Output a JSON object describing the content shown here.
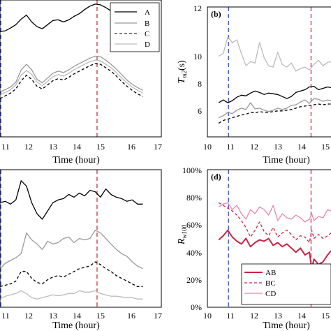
{
  "chart_data": [
    {
      "panel": "a",
      "type": "line",
      "xlabel": "Time (hour)",
      "xticks": [
        "11",
        "12",
        "13",
        "14",
        "15",
        "16",
        "17"
      ],
      "xlim": [
        10.9,
        17
      ],
      "ylim": [
        0,
        10
      ],
      "vlines": [
        {
          "x": 10.93,
          "color": "#3344cc"
        },
        {
          "x": 14.57,
          "color": "#cc3344"
        }
      ],
      "legend": {
        "placement": "top-right"
      },
      "series": [
        {
          "name": "A",
          "color": "#000000",
          "dash": "solid",
          "x": [
            10.9,
            11.1,
            11.3,
            11.5,
            11.7,
            11.9,
            12.1,
            12.3,
            12.5,
            12.7,
            12.9,
            13.1,
            13.3,
            13.5,
            13.7,
            13.9,
            14.1,
            14.3,
            14.5,
            14.7,
            14.9,
            15.1,
            15.3,
            15.5,
            15.7,
            15.9,
            16.1,
            16.3
          ],
          "y": [
            7.7,
            7.75,
            7.95,
            8.2,
            8.6,
            8.9,
            8.4,
            8.05,
            7.9,
            8.2,
            8.5,
            8.55,
            8.4,
            8.55,
            8.8,
            9.0,
            9.3,
            9.55,
            9.7,
            9.65,
            9.45,
            9.2,
            8.85,
            8.5,
            8.2,
            7.95,
            7.8,
            7.7
          ]
        },
        {
          "name": "B",
          "color": "#999999",
          "dash": "solid",
          "x": [
            10.9,
            11.1,
            11.3,
            11.5,
            11.7,
            11.9,
            12.1,
            12.3,
            12.5,
            12.7,
            12.9,
            13.1,
            13.3,
            13.5,
            13.7,
            13.9,
            14.1,
            14.3,
            14.5,
            14.7,
            14.9,
            15.1,
            15.3,
            15.5,
            15.7,
            15.9,
            16.1,
            16.3
          ],
          "y": [
            3.3,
            3.45,
            3.65,
            4.0,
            4.9,
            5.3,
            4.9,
            4.2,
            3.95,
            4.3,
            4.65,
            4.8,
            4.7,
            4.9,
            5.15,
            5.35,
            5.55,
            5.75,
            5.9,
            5.85,
            5.6,
            5.3,
            4.95,
            4.55,
            4.15,
            3.85,
            3.6,
            3.4
          ]
        },
        {
          "name": "C",
          "color": "#000000",
          "dash": "dashed",
          "x": [
            10.9,
            11.1,
            11.3,
            11.5,
            11.7,
            11.9,
            12.1,
            12.3,
            12.5,
            12.7,
            12.9,
            13.1,
            13.3,
            13.5,
            13.7,
            13.9,
            14.1,
            14.3,
            14.5,
            14.7,
            14.9,
            15.1,
            15.3,
            15.5,
            15.7,
            15.9,
            16.1,
            16.3
          ],
          "y": [
            2.8,
            3.0,
            3.2,
            3.5,
            4.1,
            4.5,
            4.2,
            3.7,
            3.5,
            3.8,
            4.1,
            4.25,
            4.15,
            4.35,
            4.6,
            4.8,
            5.0,
            5.2,
            5.35,
            5.3,
            5.05,
            4.8,
            4.45,
            4.05,
            3.7,
            3.4,
            3.15,
            2.95
          ]
        },
        {
          "name": "D",
          "color": "#bbbbbb",
          "dash": "solid",
          "x": [
            10.9,
            11.1,
            11.3,
            11.5,
            11.7,
            11.9,
            12.1,
            12.3,
            12.5,
            12.7,
            12.9,
            13.1,
            13.3,
            13.5,
            13.7,
            13.9,
            14.1,
            14.3,
            14.5,
            14.7,
            14.9,
            15.1,
            15.3,
            15.5,
            15.7,
            15.9,
            16.1,
            16.3
          ],
          "y": [
            3.1,
            3.25,
            3.45,
            3.8,
            4.5,
            4.85,
            4.55,
            4.0,
            3.75,
            4.05,
            4.4,
            4.55,
            4.45,
            4.65,
            4.9,
            5.1,
            5.3,
            5.5,
            5.6,
            5.55,
            5.3,
            5.05,
            4.7,
            4.3,
            3.95,
            3.65,
            3.4,
            3.2
          ]
        }
      ]
    },
    {
      "panel": "b",
      "type": "line",
      "tag": "(b)",
      "xlabel": "Time (hour)",
      "xticks": [
        "10",
        "11",
        "12",
        "13",
        "14",
        "15"
      ],
      "xlim": [
        10,
        15.45
      ],
      "yticks": [
        "6",
        "8",
        "10",
        "12"
      ],
      "ylim": [
        2.5,
        12
      ],
      "vlines": [
        {
          "x": 10.93,
          "color": "#3344cc"
        },
        {
          "x": 14.57,
          "color": "#cc3344"
        }
      ],
      "series": [
        {
          "color": "#000000",
          "x": [
            10.5,
            10.7,
            10.9,
            11.1,
            11.3,
            11.5,
            11.7,
            11.9,
            12.1,
            12.3,
            12.5,
            12.7,
            12.9,
            13.1,
            13.3,
            13.5,
            13.7,
            13.9,
            14.1,
            14.3,
            14.5,
            14.7,
            14.9,
            15.1,
            15.3,
            15.45
          ],
          "y": [
            5.0,
            5.2,
            5.0,
            5.15,
            5.4,
            5.55,
            5.5,
            5.7,
            5.85,
            5.75,
            5.6,
            5.7,
            5.65,
            5.6,
            5.45,
            5.3,
            5.45,
            5.75,
            5.85,
            5.95,
            6.15,
            6.2,
            5.95,
            6.05,
            6.15,
            6.1
          ]
        },
        {
          "color": "#999999",
          "x": [
            10.5,
            10.7,
            10.9,
            11.1,
            11.3,
            11.5,
            11.7,
            11.9,
            12.1,
            12.3,
            12.5,
            12.7,
            12.9,
            13.1,
            13.3,
            13.5,
            13.7,
            13.9,
            14.1,
            14.3,
            14.5,
            14.7,
            14.9,
            15.1,
            15.3,
            15.45
          ],
          "y": [
            3.9,
            4.05,
            4.3,
            4.2,
            4.45,
            4.6,
            4.5,
            5.0,
            4.55,
            4.6,
            4.45,
            4.35,
            4.45,
            4.6,
            4.5,
            4.6,
            4.8,
            4.85,
            5.05,
            5.2,
            4.95,
            5.3,
            5.25,
            5.1,
            5.2,
            5.15
          ]
        },
        {
          "color": "#000000",
          "dash": "dashed",
          "x": [
            10.5,
            10.7,
            10.9,
            11.1,
            11.3,
            11.5,
            11.7,
            11.9,
            12.1,
            12.3,
            12.5,
            12.7,
            12.9,
            13.1,
            13.3,
            13.5,
            13.7,
            13.9,
            14.1,
            14.3,
            14.5,
            14.7,
            14.9,
            15.1,
            15.3,
            15.45
          ],
          "y": [
            3.5,
            3.7,
            3.8,
            3.9,
            4.0,
            4.1,
            4.15,
            4.3,
            4.25,
            4.35,
            4.3,
            4.3,
            4.35,
            4.4,
            4.4,
            4.45,
            4.5,
            4.6,
            4.7,
            4.75,
            4.8,
            4.85,
            4.9,
            4.85,
            4.9,
            4.9
          ]
        },
        {
          "color": "#bbbbbb",
          "x": [
            10.5,
            10.7,
            10.9,
            11.1,
            11.3,
            11.5,
            11.7,
            11.9,
            12.1,
            12.3,
            12.5,
            12.7,
            12.9,
            13.1,
            13.3,
            13.5,
            13.7,
            13.9,
            14.1,
            14.3,
            14.5,
            14.7,
            14.9,
            15.1,
            15.3,
            15.45
          ],
          "y": [
            8.4,
            8.6,
            9.8,
            9.4,
            9.6,
            8.6,
            7.7,
            8.0,
            7.9,
            9.4,
            8.3,
            7.7,
            7.6,
            8.7,
            7.8,
            7.6,
            7.9,
            7.3,
            7.5,
            7.6,
            7.4,
            7.8,
            8.1,
            7.7,
            7.95,
            8.0
          ]
        }
      ]
    },
    {
      "panel": "c",
      "type": "line",
      "xlabel": "Time (hour)",
      "xticks": [
        "11",
        "12",
        "13",
        "14",
        "15",
        "16",
        "17"
      ],
      "xlim": [
        10.9,
        17
      ],
      "ylim": [
        0,
        10
      ],
      "vlines": [
        {
          "x": 10.93,
          "color": "#3344cc"
        },
        {
          "x": 14.57,
          "color": "#cc3344"
        }
      ],
      "series": [
        {
          "color": "#000000",
          "x": [
            10.9,
            11.1,
            11.3,
            11.5,
            11.7,
            11.9,
            12.1,
            12.3,
            12.5,
            12.7,
            12.9,
            13.1,
            13.3,
            13.5,
            13.7,
            13.9,
            14.1,
            14.3,
            14.5,
            14.7,
            14.9,
            15.1,
            15.3,
            15.5,
            15.7,
            15.9,
            16.1,
            16.3
          ],
          "y": [
            7.6,
            7.7,
            7.5,
            7.8,
            9.2,
            8.8,
            7.6,
            6.8,
            6.4,
            7.0,
            7.6,
            7.8,
            7.9,
            8.2,
            8.0,
            8.3,
            8.1,
            8.5,
            8.4,
            8.0,
            8.6,
            8.2,
            8.0,
            7.9,
            7.7,
            7.8,
            7.5,
            7.5
          ]
        },
        {
          "color": "#999999",
          "x": [
            10.9,
            11.1,
            11.3,
            11.5,
            11.7,
            11.9,
            12.1,
            12.3,
            12.5,
            12.7,
            12.9,
            13.1,
            13.3,
            13.5,
            13.7,
            13.9,
            14.1,
            14.3,
            14.5,
            14.7,
            14.9,
            15.1,
            15.3,
            15.5,
            15.7,
            15.9,
            16.1,
            16.3
          ],
          "y": [
            2.8,
            3.2,
            3.4,
            3.6,
            3.9,
            5.4,
            4.9,
            4.6,
            4.2,
            4.8,
            4.6,
            4.7,
            5.0,
            5.1,
            4.7,
            5.0,
            4.9,
            5.0,
            5.6,
            5.4,
            5.0,
            4.6,
            4.2,
            3.9,
            3.7,
            3.3,
            3.0,
            2.8
          ]
        },
        {
          "color": "#000000",
          "dash": "dashed",
          "x": [
            10.9,
            11.1,
            11.3,
            11.5,
            11.7,
            11.9,
            12.1,
            12.3,
            12.5,
            12.7,
            12.9,
            13.1,
            13.3,
            13.5,
            13.7,
            13.9,
            14.1,
            14.3,
            14.5,
            14.7,
            14.9,
            15.1,
            15.3,
            15.5,
            15.7,
            15.9,
            16.1,
            16.3
          ],
          "y": [
            1.5,
            1.6,
            1.7,
            1.9,
            2.6,
            2.6,
            2.1,
            1.8,
            1.7,
            2.0,
            2.2,
            2.3,
            2.2,
            2.4,
            2.6,
            2.8,
            2.9,
            3.0,
            3.3,
            3.1,
            2.8,
            2.6,
            2.3,
            2.1,
            1.9,
            1.7,
            1.5,
            1.5
          ]
        },
        {
          "color": "#bbbbbb",
          "x": [
            10.9,
            11.1,
            11.3,
            11.5,
            11.7,
            11.9,
            12.1,
            12.3,
            12.5,
            12.7,
            12.9,
            13.1,
            13.3,
            13.5,
            13.7,
            13.9,
            14.1,
            14.3,
            14.5,
            14.7,
            14.9,
            15.1,
            15.3,
            15.5,
            15.7,
            15.9,
            16.1,
            16.3
          ],
          "y": [
            0.6,
            0.8,
            0.9,
            1.0,
            1.2,
            1.0,
            0.7,
            0.6,
            0.7,
            0.8,
            0.9,
            0.85,
            0.9,
            1.0,
            1.0,
            1.2,
            1.1,
            1.1,
            1.2,
            1.0,
            0.9,
            0.8,
            0.8,
            0.75,
            0.7,
            0.7,
            0.6,
            0.6
          ]
        }
      ]
    },
    {
      "panel": "d",
      "type": "line",
      "tag": "(d)",
      "xlabel": "Time (hour)",
      "xticks": [
        "10",
        "11",
        "12",
        "13",
        "14",
        "15"
      ],
      "xlim": [
        10,
        15.45
      ],
      "yticks": [
        "0%",
        "20%",
        "40%",
        "60%",
        "80%",
        "100%"
      ],
      "ylim": [
        0,
        100
      ],
      "vlines": [
        {
          "x": 10.93,
          "color": "#3344cc"
        },
        {
          "x": 14.57,
          "color": "#cc3344"
        }
      ],
      "legend": {
        "placement": "bottom-right"
      },
      "series": [
        {
          "name": "AB",
          "color": "#cc2244",
          "dash": "solid",
          "x": [
            10.5,
            10.7,
            10.9,
            11.1,
            11.3,
            11.5,
            11.7,
            11.9,
            12.1,
            12.3,
            12.5,
            12.7,
            12.9,
            13.1,
            13.3,
            13.5,
            13.7,
            13.9,
            14.1,
            14.3,
            14.5,
            14.6,
            14.7,
            14.9,
            15.1,
            15.3,
            15.45
          ],
          "y": [
            49,
            52,
            56,
            51,
            48,
            46,
            50,
            44,
            47,
            49,
            48,
            50,
            45,
            47,
            44,
            46,
            43,
            40,
            43,
            38,
            40,
            28,
            35,
            31,
            33,
            38,
            41
          ]
        },
        {
          "name": "BC",
          "color": "#cc2244",
          "dash": "dashed",
          "x": [
            10.5,
            10.7,
            10.9,
            11.1,
            11.3,
            11.5,
            11.7,
            11.9,
            12.1,
            12.3,
            12.5,
            12.7,
            12.9,
            13.1,
            13.3,
            13.5,
            13.7,
            13.9,
            14.1,
            14.3,
            14.5,
            14.6,
            14.7,
            14.9,
            15.1,
            15.3,
            15.45
          ],
          "y": [
            76,
            74,
            72,
            70,
            67,
            63,
            58,
            51,
            56,
            62,
            55,
            52,
            58,
            51,
            54,
            56,
            53,
            49,
            52,
            51,
            47,
            56,
            50,
            53,
            50,
            52,
            54
          ]
        },
        {
          "name": "CD",
          "color": "#e888a8",
          "dash": "solid",
          "x": [
            10.5,
            10.7,
            10.9,
            11.1,
            11.3,
            11.5,
            11.7,
            11.9,
            12.1,
            12.3,
            12.5,
            12.7,
            12.9,
            13.1,
            13.3,
            13.5,
            13.7,
            13.9,
            14.1,
            14.3,
            14.5,
            14.6,
            14.7,
            14.9,
            15.1,
            15.3,
            15.45
          ],
          "y": [
            73,
            75,
            76,
            71,
            74,
            68,
            64,
            71,
            68,
            73,
            71,
            67,
            74,
            63,
            68,
            65,
            64,
            67,
            65,
            62,
            64,
            68,
            63,
            66,
            65,
            71,
            70
          ]
        }
      ]
    }
  ]
}
